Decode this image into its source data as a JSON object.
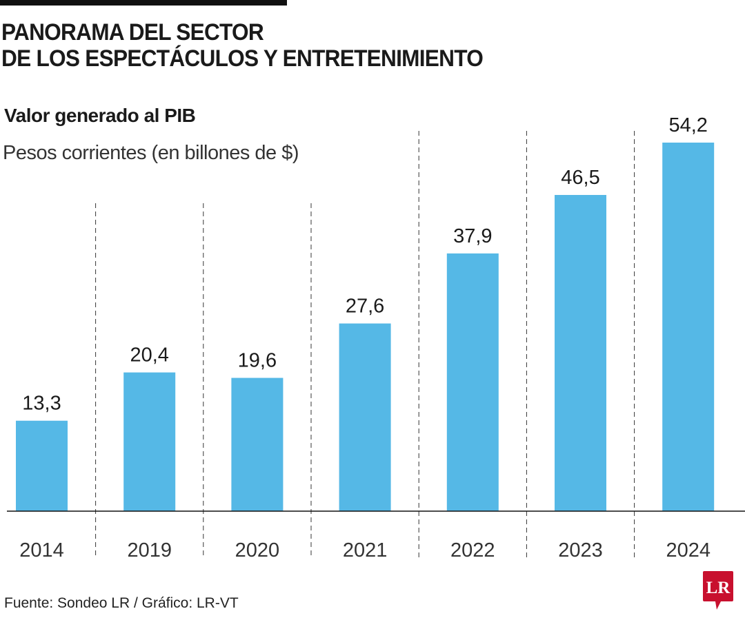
{
  "title_line1": "PANORAMA DEL SECTOR",
  "title_line2": "DE LOS ESPECTÁCULOS Y ENTRETENIMIENTO",
  "source": "Fuente: Sondeo LR / Gráfico: LR-VT",
  "logo_text": "LR",
  "colors": {
    "bar": "#55b8e6",
    "logo": "#c8102e",
    "text": "#1a1a1a"
  },
  "chart_data": {
    "type": "bar",
    "title": "Valor generado al PIB",
    "subtitle": "Pesos corrientes (en billones de $)",
    "categories": [
      "2014",
      "2019",
      "2020",
      "2021",
      "2022",
      "2023",
      "2024"
    ],
    "values": [
      13.3,
      20.4,
      19.6,
      27.6,
      37.9,
      46.5,
      54.2
    ],
    "data_labels": [
      "13,3",
      "20,4",
      "19,6",
      "27,6",
      "37,9",
      "46,5",
      "54,2"
    ],
    "xlabel": "",
    "ylabel": "",
    "ylim": [
      0,
      54.2
    ],
    "grid": false,
    "legend": "none"
  }
}
